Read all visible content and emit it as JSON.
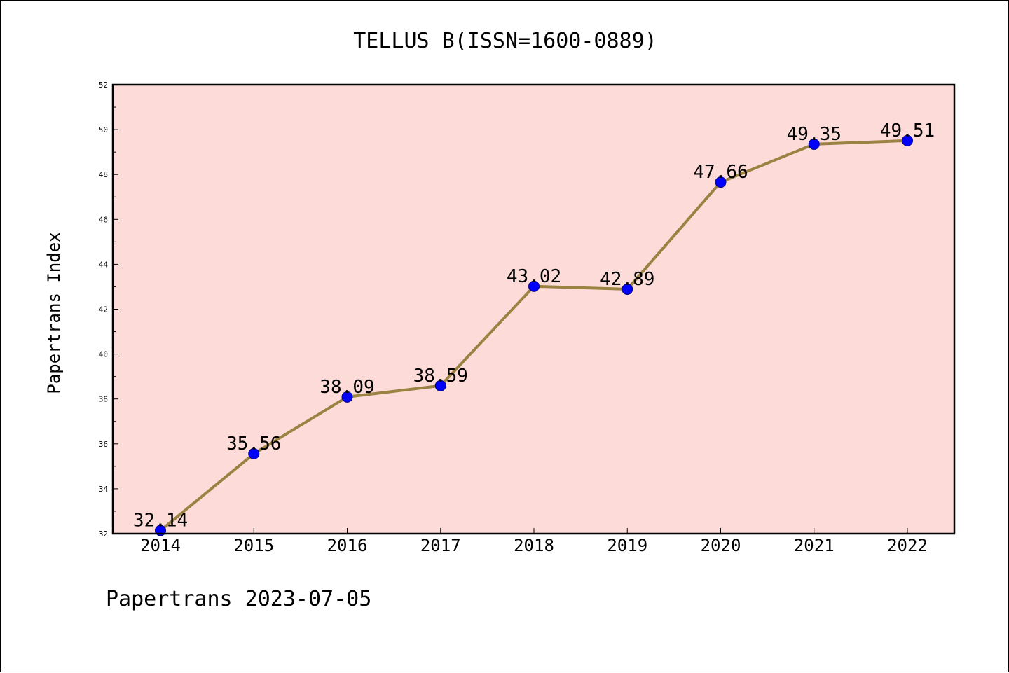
{
  "chart_data": {
    "type": "line",
    "title": "TELLUS B(ISSN=1600-0889)",
    "xlabel": "",
    "ylabel": "Papertrans Index",
    "categories": [
      "2014",
      "2015",
      "2016",
      "2017",
      "2018",
      "2019",
      "2020",
      "2021",
      "2022"
    ],
    "values": [
      32.14,
      35.56,
      38.09,
      38.59,
      43.02,
      42.89,
      47.66,
      49.35,
      49.51
    ],
    "data_labels": [
      "32.14",
      "35.56",
      "38.09",
      "38.59",
      "43.02",
      "42.89",
      "47.66",
      "49.35",
      "49.51"
    ],
    "ylim": [
      32,
      52
    ],
    "yticks": [
      "32",
      "34",
      "36",
      "38",
      "40",
      "42",
      "44",
      "46",
      "48",
      "50",
      "52"
    ],
    "grid": false,
    "legend": "none",
    "colors": {
      "plot_background": "#fddbd8",
      "line": "#9a8242",
      "marker": "#0000ff",
      "axis": "#000000"
    }
  },
  "footer": "Papertrans 2023-07-05"
}
